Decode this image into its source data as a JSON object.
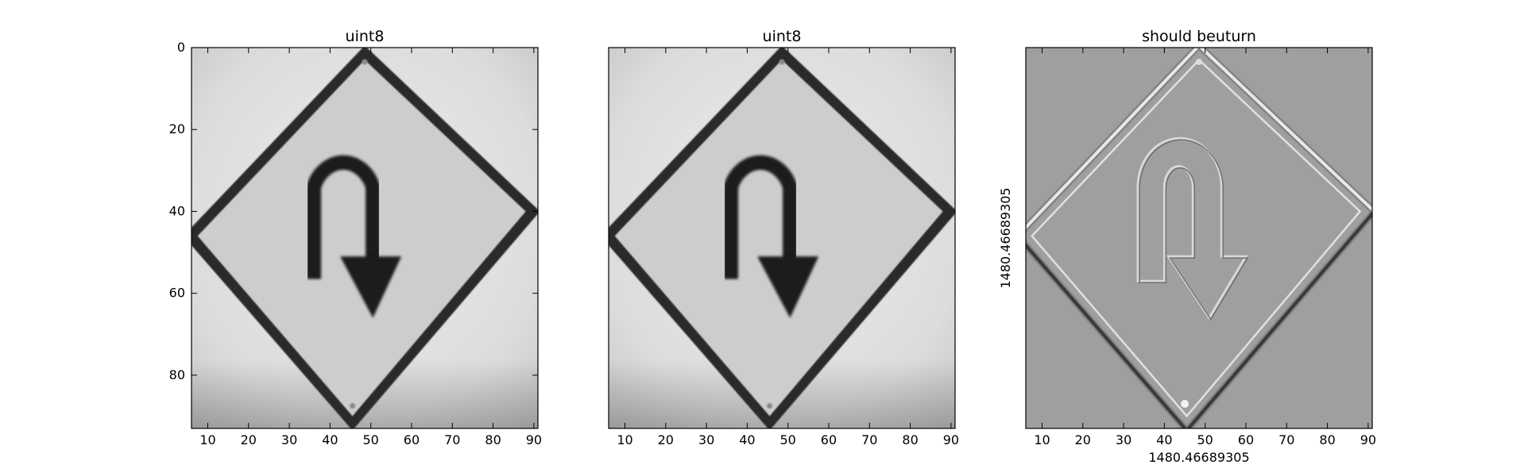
{
  "figure": {
    "panels": [
      {
        "id": "left",
        "title": "uint8",
        "style": "grayscale",
        "show_y_ticks": true,
        "show_x_ticks": true,
        "x_ticks": [
          "10",
          "20",
          "30",
          "40",
          "50",
          "60",
          "70",
          "80",
          "90"
        ],
        "y_ticks": [
          "0",
          "20",
          "40",
          "60",
          "80"
        ],
        "xlabel": "",
        "ylabel": ""
      },
      {
        "id": "middle",
        "title": "uint8",
        "style": "grayscale",
        "show_y_ticks": false,
        "show_x_ticks": true,
        "x_ticks": [
          "10",
          "20",
          "30",
          "40",
          "50",
          "60",
          "70",
          "80",
          "90"
        ],
        "y_ticks": [],
        "xlabel": "",
        "ylabel": ""
      },
      {
        "id": "right",
        "title": "should beuturn",
        "style": "embossed",
        "show_y_ticks": false,
        "show_x_ticks": true,
        "x_ticks": [
          "10",
          "20",
          "30",
          "40",
          "50",
          "60",
          "70",
          "80",
          "90"
        ],
        "y_ticks": [],
        "xlabel": "1480.46689305",
        "ylabel": "1480.46689305"
      }
    ],
    "image": {
      "subject": "diamond-shaped U-turn road sign",
      "x_range": [
        6,
        91
      ],
      "y_range": [
        0,
        93
      ]
    }
  }
}
